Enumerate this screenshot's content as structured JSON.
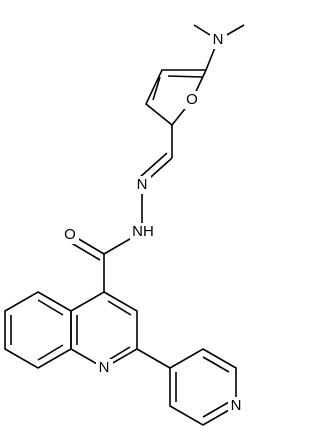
{
  "atoms": [
    {
      "label": "N"
    },
    {
      "label": "O"
    },
    {
      "label": "N"
    },
    {
      "label": "NH"
    },
    {
      "label": "O"
    },
    {
      "label": "N"
    },
    {
      "label": "N"
    }
  ]
}
